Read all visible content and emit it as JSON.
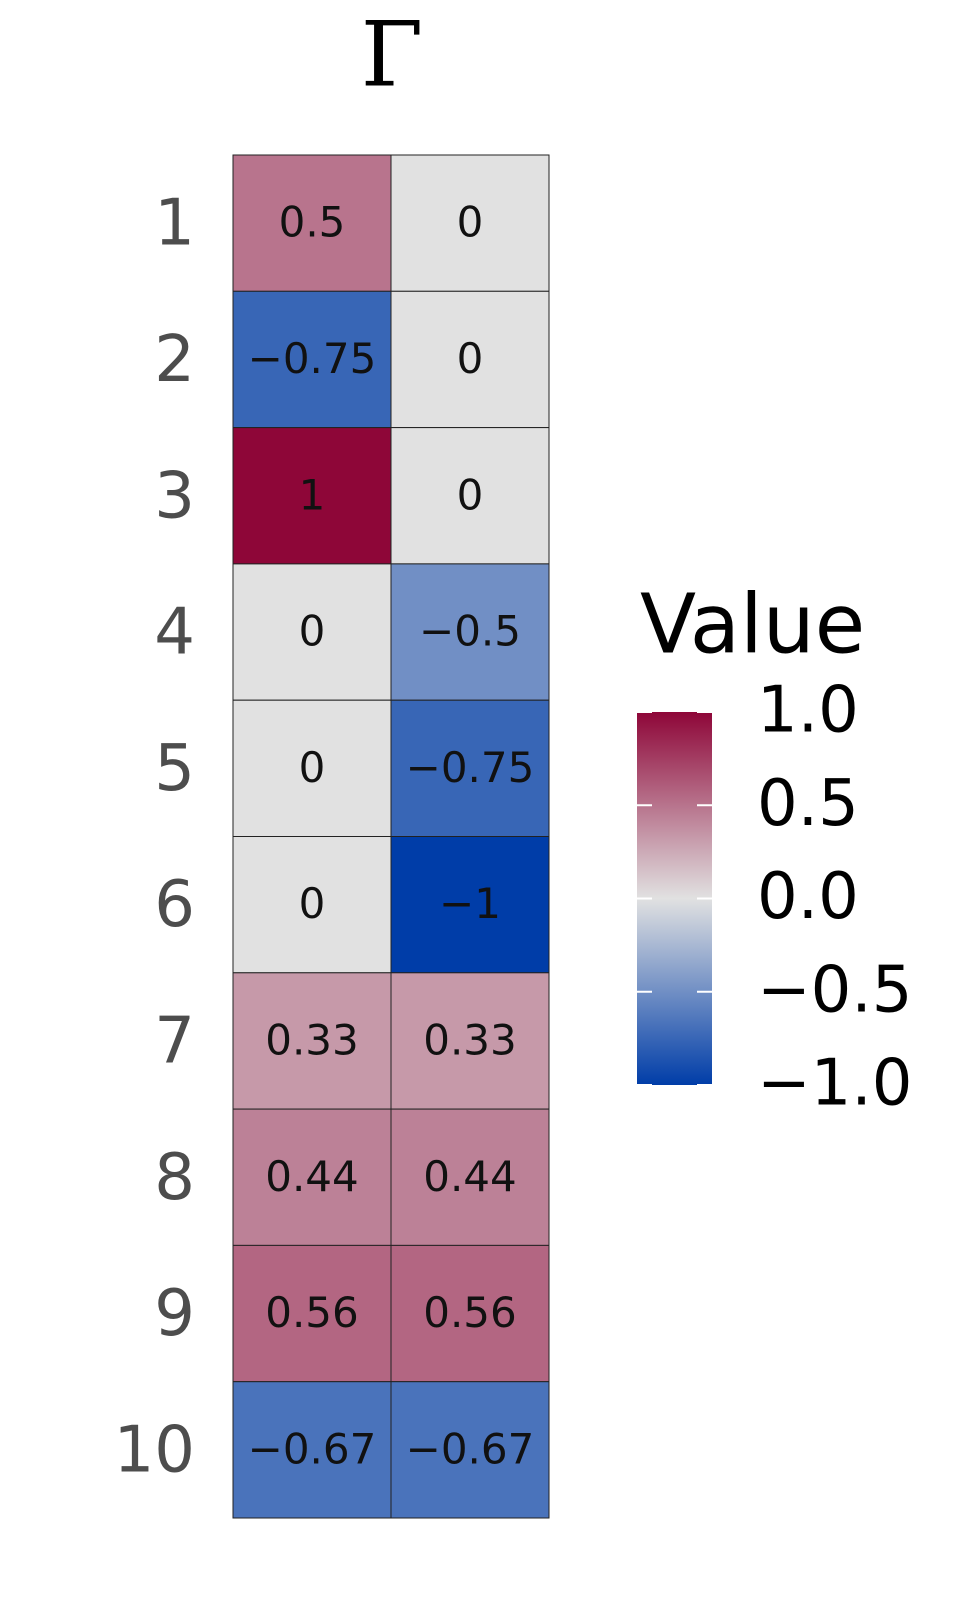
{
  "chart_data": {
    "type": "heatmap",
    "title": "Γ",
    "rows": [
      "1",
      "2",
      "3",
      "4",
      "5",
      "6",
      "7",
      "8",
      "9",
      "10"
    ],
    "values": [
      [
        0.5,
        0
      ],
      [
        -0.75,
        0
      ],
      [
        1,
        0
      ],
      [
        0,
        -0.5
      ],
      [
        0,
        -0.75
      ],
      [
        0,
        -1
      ],
      [
        0.33,
        0.33
      ],
      [
        0.44,
        0.44
      ],
      [
        0.56,
        0.56
      ],
      [
        -0.67,
        -0.67
      ]
    ],
    "value_labels": [
      [
        "0.5",
        "0"
      ],
      [
        "−0.75",
        "0"
      ],
      [
        "1",
        "0"
      ],
      [
        "0",
        "−0.5"
      ],
      [
        "0",
        "−0.75"
      ],
      [
        "0",
        "−1"
      ],
      [
        "0.33",
        "0.33"
      ],
      [
        "0.44",
        "0.44"
      ],
      [
        "0.56",
        "0.56"
      ],
      [
        "−0.67",
        "−0.67"
      ]
    ],
    "colors": {
      "low": "#003da8",
      "mid": "#e1e1e1",
      "high": "#8e0638"
    },
    "legend_title": "Value",
    "clim": [
      -1,
      1
    ],
    "cticks": [
      {
        "value": -1,
        "label": "−1.0"
      },
      {
        "value": -0.5,
        "label": "−0.5"
      },
      {
        "value": 0,
        "label": "0.0"
      },
      {
        "value": 0.5,
        "label": "0.5"
      },
      {
        "value": 1,
        "label": "1.0"
      }
    ]
  }
}
